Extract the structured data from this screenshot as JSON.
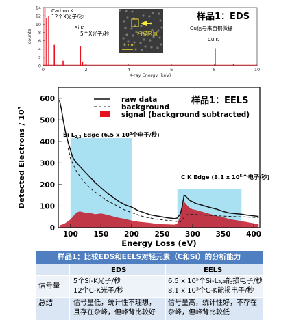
{
  "chart_data": [
    {
      "type": "bar",
      "panel_label": "样品1：EDS",
      "ylabel": "counts",
      "xlabel": "X-ray Energy (keV)",
      "xlim": [
        0,
        10
      ],
      "ylim": [
        0,
        14
      ],
      "xticks": [
        0,
        2,
        4,
        6,
        8,
        10
      ],
      "yticks": [
        0,
        2,
        4,
        6,
        8,
        10,
        12,
        14
      ],
      "peaks": [
        {
          "x": 0.08,
          "y": 14.0
        },
        {
          "x": 0.16,
          "y": 11.5
        },
        {
          "x": 0.26,
          "y": 12.0
        },
        {
          "x": 0.52,
          "y": 5.0
        },
        {
          "x": 0.93,
          "y": 1.2
        },
        {
          "x": 1.74,
          "y": 4.6
        },
        {
          "x": 1.84,
          "y": 1.0
        },
        {
          "x": 2.0,
          "y": 0.5
        },
        {
          "x": 8.04,
          "y": 4.2
        },
        {
          "x": 8.9,
          "y": 0.4
        }
      ],
      "annotations": {
        "carbon": "Carbon K",
        "carbon_rate": "12个X光子/秒",
        "si": "Si K",
        "si_rate": "5个X光子/秒",
        "cu_note": "Cu信号来自铜微栅",
        "cu": "Cu K"
      },
      "inset": {
        "label": "扫描区域",
        "scale": "1 nm"
      }
    },
    {
      "type": "line",
      "panel_label": "样品1：EELS",
      "xlabel": "Energy Loss (eV)",
      "ylabel": "Detected Electrons / 10",
      "ylabel_sup": "3",
      "xlim": [
        80,
        410
      ],
      "ylim": [
        0,
        650
      ],
      "xticks": [
        100,
        150,
        200,
        250,
        300,
        350,
        400
      ],
      "yticks": [
        0,
        100,
        200,
        300,
        400,
        500,
        600
      ],
      "legend": [
        "raw data",
        "background",
        "signal (background subtracted)"
      ],
      "series": [
        {
          "name": "raw data",
          "x": [
            82,
            85,
            88,
            92,
            96,
            100,
            103,
            106,
            110,
            115,
            120,
            130,
            140,
            150,
            160,
            170,
            180,
            190,
            200,
            210,
            220,
            230,
            240,
            250,
            260,
            270,
            275,
            280,
            283,
            286,
            289,
            292,
            296,
            300,
            305,
            310,
            320,
            330,
            340,
            350,
            360,
            370,
            380,
            390,
            400,
            408
          ],
          "y": [
            590,
            550,
            500,
            440,
            395,
            360,
            330,
            315,
            300,
            285,
            270,
            240,
            210,
            185,
            160,
            140,
            120,
            105,
            95,
            80,
            70,
            60,
            55,
            50,
            45,
            42,
            45,
            65,
            100,
            150,
            145,
            135,
            125,
            120,
            112,
            108,
            100,
            92,
            85,
            75,
            68,
            65,
            62,
            58,
            55,
            52
          ]
        },
        {
          "name": "background",
          "x": [
            96,
            100,
            110,
            120,
            130,
            140,
            150,
            160,
            170,
            180,
            190,
            200,
            210,
            220,
            230,
            240,
            250,
            260,
            270,
            275,
            280,
            290,
            300,
            320,
            340,
            360,
            380,
            400,
            408
          ],
          "y": [
            370,
            320,
            260,
            220,
            190,
            165,
            145,
            125,
            110,
            95,
            80,
            70,
            60,
            50,
            45,
            40,
            36,
            33,
            30,
            28,
            27,
            60,
            62,
            58,
            55,
            52,
            50,
            48,
            46
          ]
        },
        {
          "name": "signal (background subtracted)",
          "x": [
            82,
            90,
            95,
            100,
            105,
            110,
            115,
            120,
            125,
            130,
            140,
            150,
            160,
            170,
            180,
            190,
            200,
            210,
            220,
            230,
            240,
            250,
            260,
            270,
            275,
            280,
            283,
            286,
            289,
            292,
            296,
            300,
            305,
            310,
            320,
            330,
            340,
            350,
            360,
            370,
            380,
            390,
            400,
            408
          ],
          "y": [
            10,
            18,
            28,
            38,
            55,
            70,
            75,
            72,
            68,
            70,
            62,
            66,
            60,
            52,
            45,
            40,
            33,
            28,
            25,
            22,
            18,
            16,
            15,
            14,
            20,
            55,
            95,
            120,
            110,
            100,
            90,
            85,
            82,
            78,
            70,
            62,
            55,
            48,
            40,
            35,
            30,
            25,
            20,
            15
          ]
        }
      ],
      "regions": [
        {
          "from": 100,
          "to": 200,
          "label": "Si L",
          "label_sub": "2,3",
          "label_rest": " Edge (6.5 x 10",
          "label_sup": "5",
          "label_end": "个电子/秒)"
        },
        {
          "from": 275,
          "to": 380,
          "label": "C K Edge (8.1 x 10",
          "label_sup": "5",
          "label_end": "个电子/秒)"
        }
      ]
    }
  ],
  "table": {
    "title": "样品1：比较EDS和EELS对轻元素（C和Si）的分析能力",
    "col_eds": "EDS",
    "col_eels": "EELS",
    "rows": [
      {
        "label": "信号量",
        "eds": [
          "5个Si-K光子/秒",
          "12个C-K光子/秒"
        ],
        "eels": [
          "6.5 x 10⁵个Si-L₂,₃能损电子/秒",
          "8.1 x 10⁵个C-K能损电子/秒"
        ]
      },
      {
        "label": "总结",
        "eds": [
          "信号量低，统计性不理想，",
          "且存在杂峰，但峰背比较好"
        ],
        "eels": [
          "信号量高，统计性好，不存在",
          "杂峰，但峰背比较低"
        ]
      }
    ]
  },
  "colors": {
    "red": "#e8121e",
    "cyan": "#a9e1f2",
    "signal": "#c41a2a",
    "table_head": "#4f7fc1",
    "table_band1": "#dbe6f4",
    "table_band2": "#eef3fa"
  }
}
